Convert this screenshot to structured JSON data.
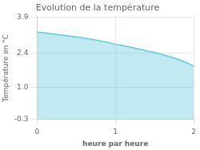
{
  "chart_data": {
    "type": "area",
    "title": "Evolution de la température",
    "xlabel": "heure par heure",
    "ylabel": "Température en °C",
    "x": [
      0.0,
      0.1,
      0.2,
      0.3,
      0.4,
      0.5,
      0.6,
      0.7,
      0.8,
      0.9,
      1.0,
      1.1,
      1.2,
      1.3,
      1.4,
      1.5,
      1.6,
      1.7,
      1.8,
      1.9,
      2.0
    ],
    "values": [
      3.28,
      3.24,
      3.2,
      3.16,
      3.12,
      3.08,
      3.03,
      2.98,
      2.92,
      2.86,
      2.78,
      2.72,
      2.65,
      2.58,
      2.51,
      2.44,
      2.36,
      2.26,
      2.16,
      2.04,
      1.88
    ],
    "color": "#62c8dc",
    "xlim": [
      0,
      2
    ],
    "ylim": [
      -0.3,
      3.9
    ],
    "xticks": [
      0,
      1,
      2
    ],
    "yticks": [
      -0.3,
      {
        "value": 1.0,
        "label": "1.0"
      },
      2.4,
      3.9
    ],
    "grid": true
  }
}
